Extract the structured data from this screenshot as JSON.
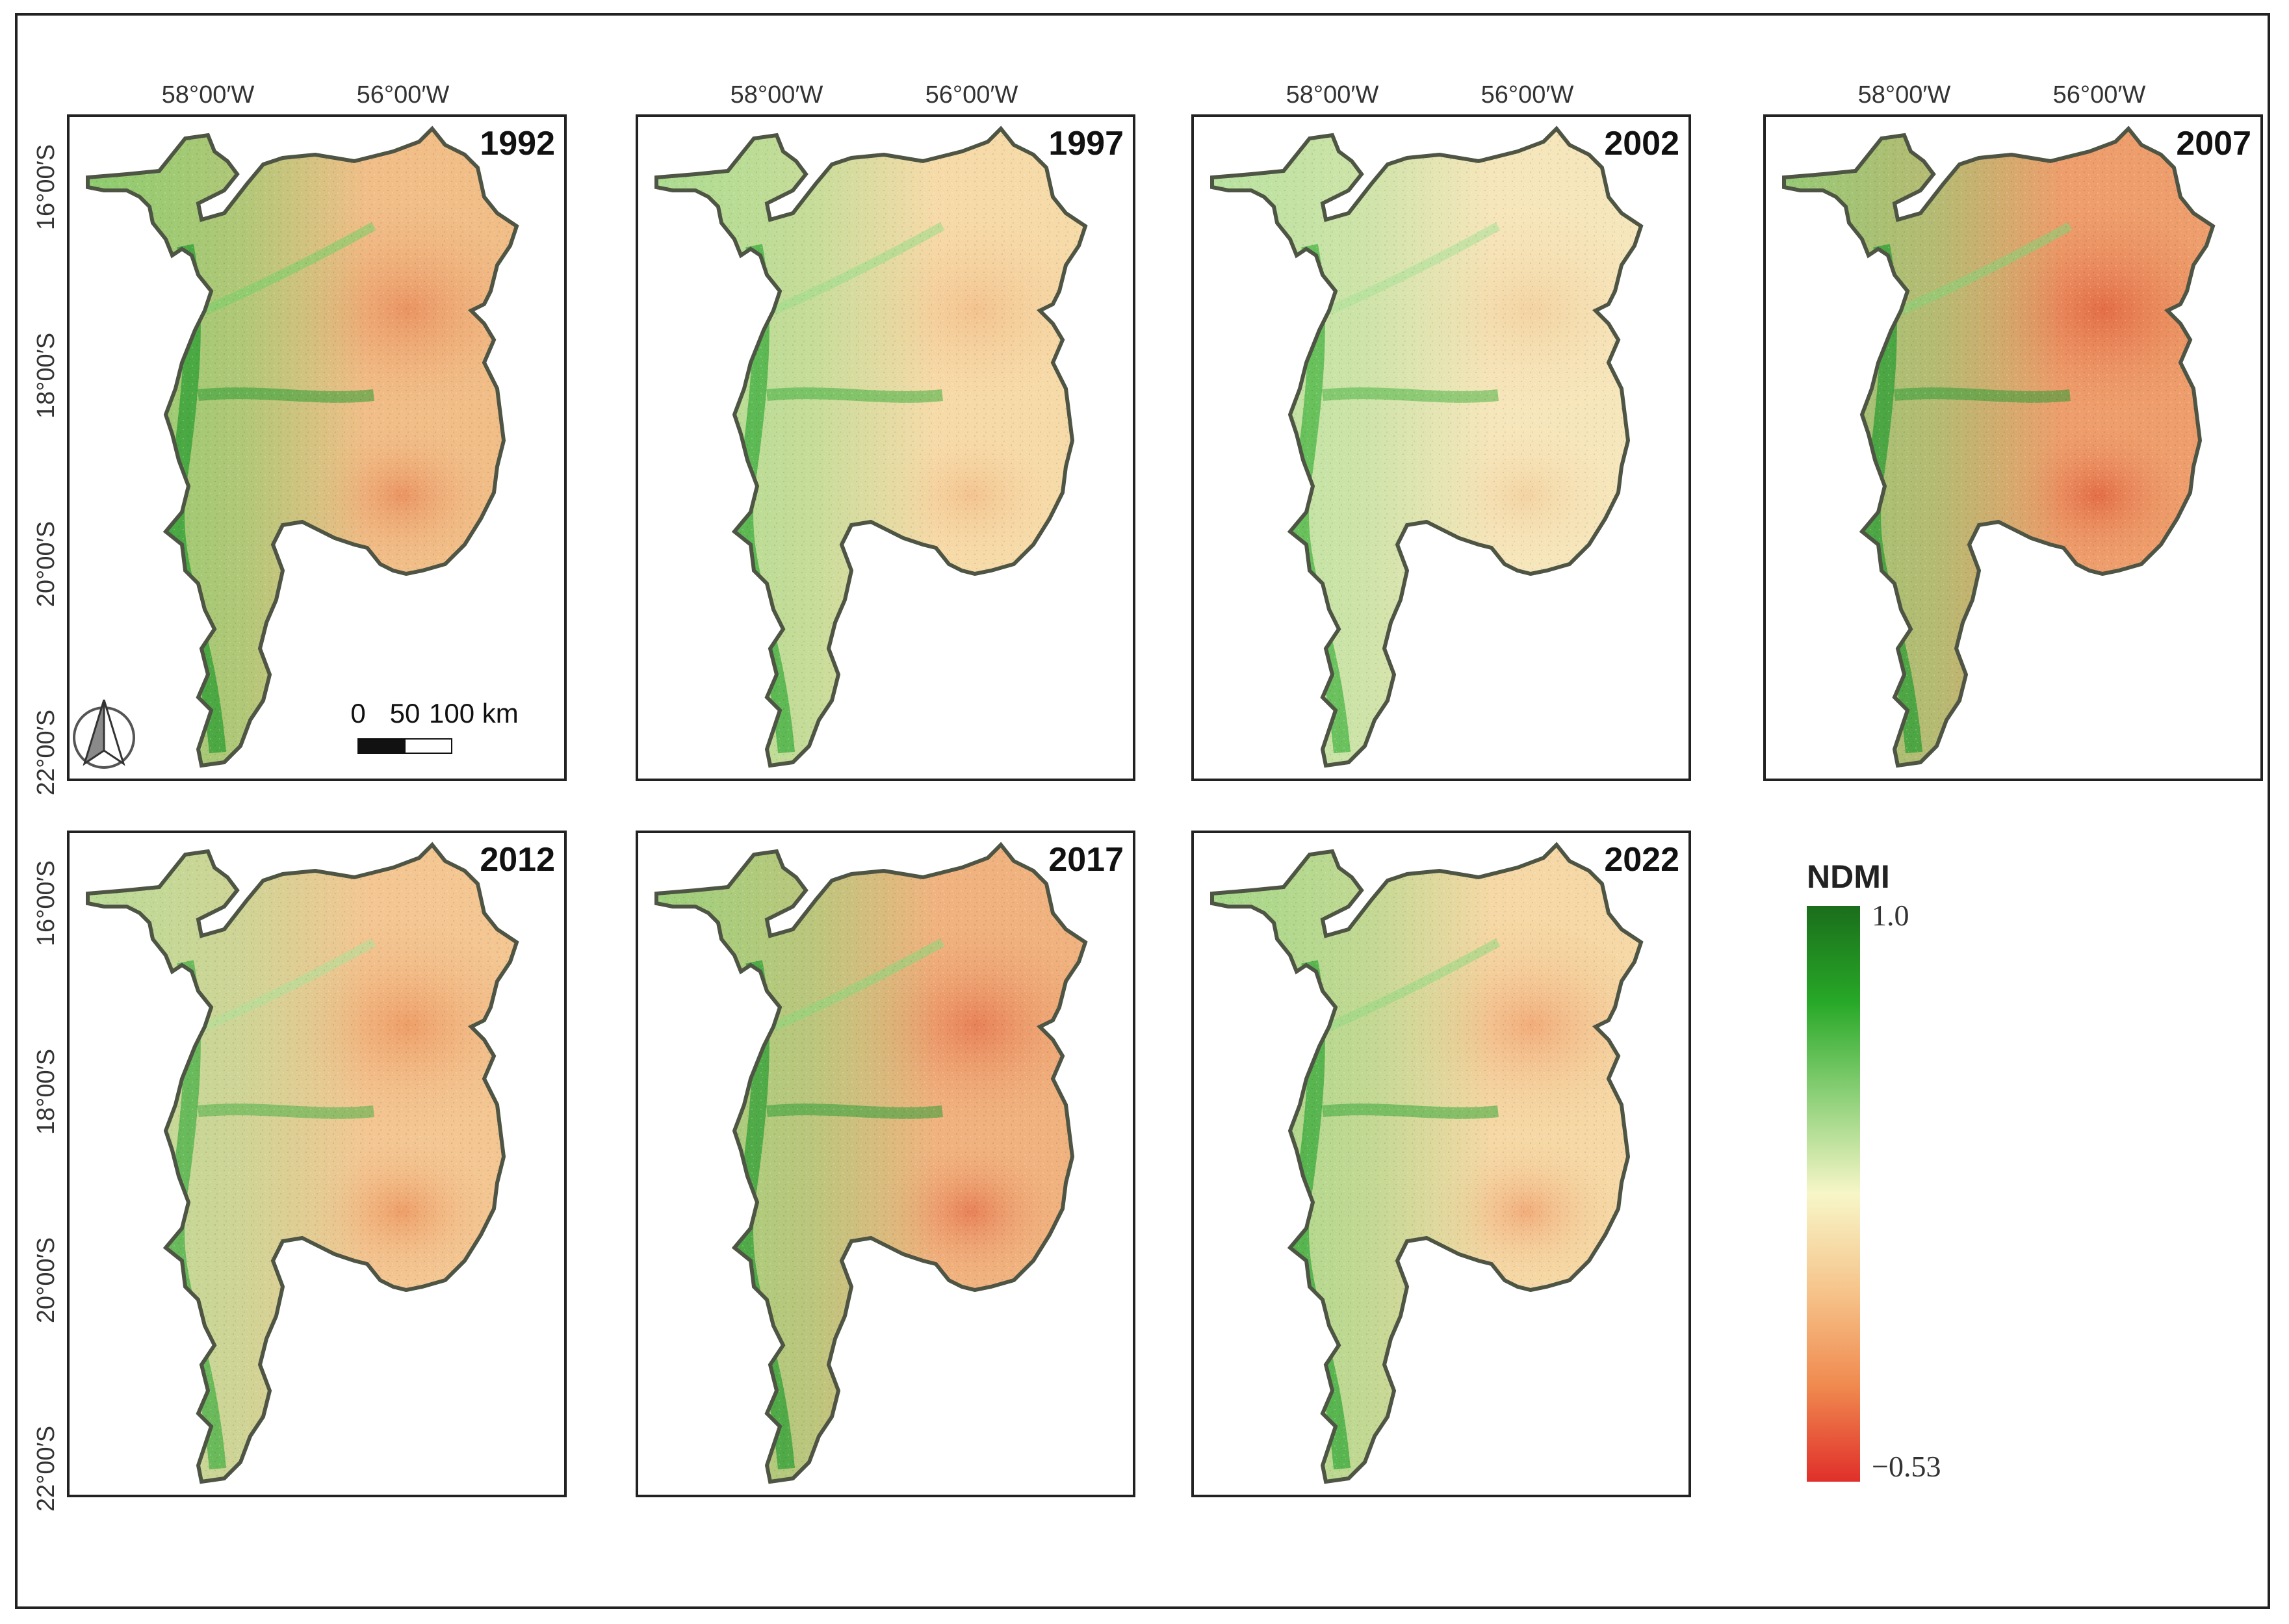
{
  "figure": {
    "legend": {
      "title": "NDMI",
      "max_label": "1.0",
      "min_label": "−0.53",
      "colors": [
        "#1b6e1b",
        "#27a827",
        "#8fd17a",
        "#f7f6c8",
        "#f6c58c",
        "#f08a4f",
        "#e02f2a"
      ]
    },
    "longitude_labels": [
      "58°00′W",
      "56°00′W"
    ],
    "latitude_labels": [
      "16°00′S",
      "18°00′S",
      "20°00′S",
      "22°00′S"
    ],
    "scale_bar": {
      "labels": [
        "0",
        "50",
        "100 km"
      ]
    },
    "north_arrow": "north-arrow-icon",
    "panels": [
      {
        "year": "1992",
        "dry": "#ea9462",
        "mid": "#f1be88",
        "wet": "#7ccf6a",
        "river": "#2c9d33"
      },
      {
        "year": "1997",
        "dry": "#f3c38f",
        "mid": "#f6dba9",
        "wet": "#9fdc8c",
        "river": "#3eae3e"
      },
      {
        "year": "2002",
        "dry": "#f3d3a2",
        "mid": "#f6e6bb",
        "wet": "#aee19a",
        "river": "#4ab544"
      },
      {
        "year": "2007",
        "dry": "#e36d46",
        "mid": "#ee9e6c",
        "wet": "#88d177",
        "river": "#2e9d34"
      },
      {
        "year": "2012",
        "dry": "#ee9e68",
        "mid": "#f3c692",
        "wet": "#b1df98",
        "river": "#4ab047"
      },
      {
        "year": "2017",
        "dry": "#e88158",
        "mid": "#f0b37f",
        "wet": "#8fd67b",
        "river": "#2f9f36"
      },
      {
        "year": "2022",
        "dry": "#f1ac7a",
        "mid": "#f5d8a5",
        "wet": "#97d884",
        "river": "#38a93b"
      }
    ]
  }
}
